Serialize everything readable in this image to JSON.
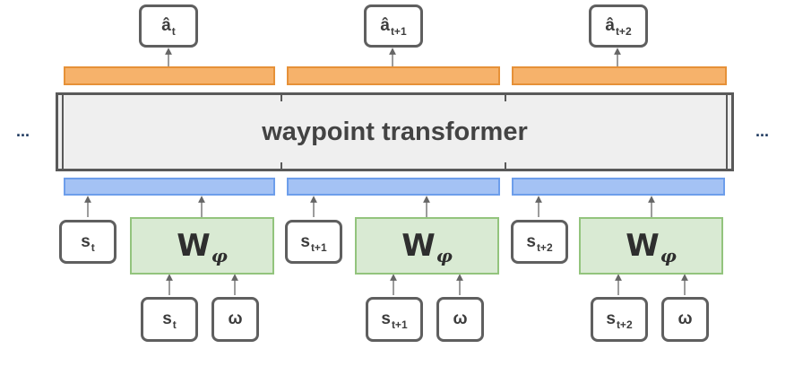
{
  "transformer_label": "waypoint transformer",
  "ellipsis_left": "...",
  "ellipsis_right": "...",
  "outputs": [
    {
      "base": "â",
      "sub": "t"
    },
    {
      "base": "â",
      "sub": "t+1"
    },
    {
      "base": "â",
      "sub": "t+2"
    }
  ],
  "states": [
    {
      "base": "s",
      "sub": "t"
    },
    {
      "base": "s",
      "sub": "t+1"
    },
    {
      "base": "s",
      "sub": "t+2"
    }
  ],
  "w_block": {
    "main": "W",
    "sub": "φ"
  },
  "goal_inputs": [
    {
      "s_base": "s",
      "s_sub": "t",
      "omega": "ω"
    },
    {
      "s_base": "s",
      "s_sub": "t+1",
      "omega": "ω"
    },
    {
      "s_base": "s",
      "s_sub": "t+2",
      "omega": "ω"
    }
  ],
  "colors": {
    "orange_fill": "#f6b26b",
    "orange_border": "#e69138",
    "blue_fill": "#a4c2f4",
    "blue_border": "#6d9eeb",
    "green_fill": "#d9ead3",
    "green_border": "#93c47d",
    "transformer_fill": "#efefef",
    "arrow": "#666666"
  }
}
